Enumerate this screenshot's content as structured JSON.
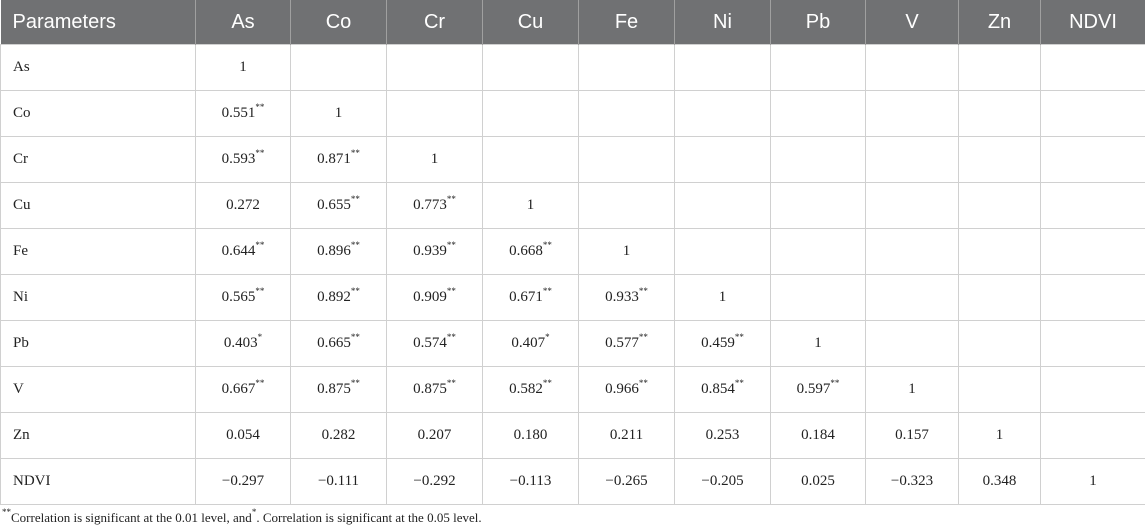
{
  "table": {
    "header": [
      "Parameters",
      "As",
      "Co",
      "Cr",
      "Cu",
      "Fe",
      "Ni",
      "Pb",
      "V",
      "Zn",
      "NDVI"
    ],
    "rows": [
      {
        "label": "As",
        "values": [
          "1"
        ]
      },
      {
        "label": "Co",
        "values": [
          {
            "text": "0.551",
            "sig": "**"
          },
          "1"
        ]
      },
      {
        "label": "Cr",
        "values": [
          {
            "text": "0.593",
            "sig": "**"
          },
          {
            "text": "0.871",
            "sig": "**"
          },
          "1"
        ]
      },
      {
        "label": "Cu",
        "values": [
          "0.272",
          {
            "text": "0.655",
            "sig": "**"
          },
          {
            "text": "0.773",
            "sig": "**"
          },
          "1"
        ]
      },
      {
        "label": "Fe",
        "values": [
          {
            "text": "0.644",
            "sig": "**"
          },
          {
            "text": "0.896",
            "sig": "**"
          },
          {
            "text": "0.939",
            "sig": "**"
          },
          {
            "text": "0.668",
            "sig": "**"
          },
          "1"
        ]
      },
      {
        "label": "Ni",
        "values": [
          {
            "text": "0.565",
            "sig": "**"
          },
          {
            "text": "0.892",
            "sig": "**"
          },
          {
            "text": "0.909",
            "sig": "**"
          },
          {
            "text": "0.671",
            "sig": "**"
          },
          {
            "text": "0.933",
            "sig": "**"
          },
          "1"
        ]
      },
      {
        "label": "Pb",
        "values": [
          {
            "text": "0.403",
            "sig": "*"
          },
          {
            "text": "0.665",
            "sig": "**"
          },
          {
            "text": "0.574",
            "sig": "**"
          },
          {
            "text": "0.407",
            "sig": "*"
          },
          {
            "text": "0.577",
            "sig": "**"
          },
          {
            "text": "0.459",
            "sig": "**"
          },
          "1"
        ]
      },
      {
        "label": "V",
        "values": [
          {
            "text": "0.667",
            "sig": "**"
          },
          {
            "text": "0.875",
            "sig": "**"
          },
          {
            "text": "0.875",
            "sig": "**"
          },
          {
            "text": "0.582",
            "sig": "**"
          },
          {
            "text": "0.966",
            "sig": "**"
          },
          {
            "text": "0.854",
            "sig": "**"
          },
          {
            "text": "0.597",
            "sig": "**"
          },
          "1"
        ]
      },
      {
        "label": "Zn",
        "values": [
          "0.054",
          "0.282",
          "0.207",
          "0.180",
          "0.211",
          "0.253",
          "0.184",
          "0.157",
          "1"
        ]
      },
      {
        "label": "NDVI",
        "values": [
          "−0.297",
          "−0.111",
          "−0.292",
          "−0.113",
          "−0.265",
          "−0.205",
          "0.025",
          "−0.323",
          "0.348",
          "1"
        ]
      }
    ]
  },
  "footnote": {
    "mark1": "**",
    "text1": "Correlation is significant at the 0.01 level, and",
    "mark2": "*",
    "text2": ". Correlation is significant at the 0.05 level."
  }
}
